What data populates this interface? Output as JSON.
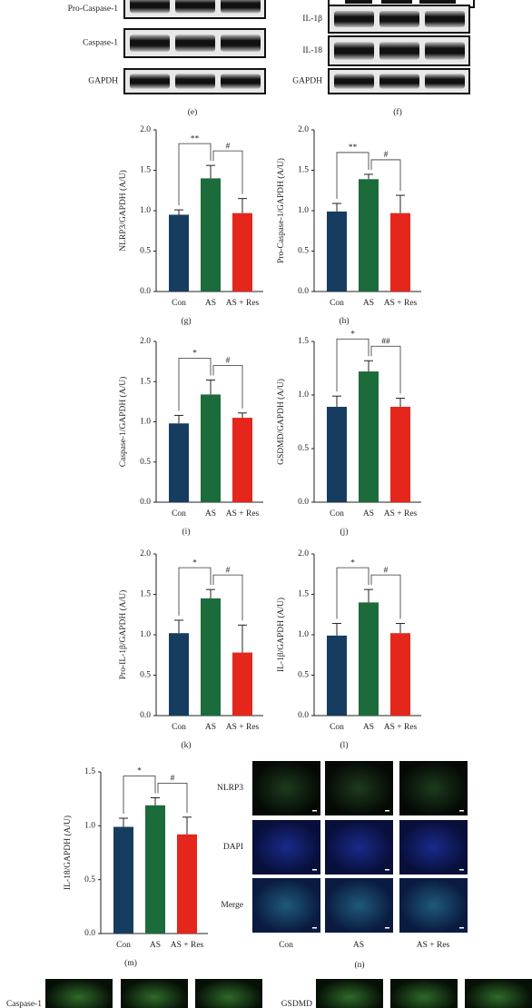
{
  "blots": {
    "e": {
      "rows": [
        "Pro-Caspase-1",
        "Caspase-1",
        "GAPDH"
      ],
      "caption": "(e)"
    },
    "f": {
      "rows": [
        "IL-1β",
        "IL-18",
        "GAPDH"
      ],
      "caption": "(f)"
    }
  },
  "chart_data": [
    {
      "type": "bar",
      "caption": "(g)",
      "ylabel": "NLRP3/GAPDH (A/U)",
      "categories": [
        "Con",
        "AS",
        "AS + Res"
      ],
      "values": [
        0.95,
        1.4,
        0.97
      ],
      "errors": [
        0.06,
        0.16,
        0.18
      ],
      "colors": [
        "#163d5f",
        "#1b6b3b",
        "#e5261c"
      ],
      "ylim": [
        0,
        2
      ],
      "yticks": [
        {
          "value": 0,
          "label": "0.0"
        },
        0.5,
        {
          "value": 1,
          "label": "1.0"
        },
        1.5,
        {
          "value": 2,
          "label": "2.0"
        }
      ],
      "significance": [
        "**",
        "#"
      ]
    },
    {
      "type": "bar",
      "caption": "(h)",
      "ylabel": "Pro-Caspase-1/GAPDH (A/U)",
      "categories": [
        "Con",
        "AS",
        "AS + Res"
      ],
      "values": [
        0.99,
        1.39,
        0.97
      ],
      "errors": [
        0.1,
        0.06,
        0.22
      ],
      "colors": [
        "#163d5f",
        "#1b6b3b",
        "#e5261c"
      ],
      "ylim": [
        0,
        2
      ],
      "yticks": [
        {
          "value": 0,
          "label": "0.0"
        },
        0.5,
        {
          "value": 1,
          "label": "1.0"
        },
        1.5,
        {
          "value": 2,
          "label": "2.0"
        }
      ],
      "significance": [
        "**",
        "#"
      ]
    },
    {
      "type": "bar",
      "caption": "(i)",
      "ylabel": "Caspase-1/GAPDH (A/U)",
      "categories": [
        "Con",
        "AS",
        "AS + Res"
      ],
      "values": [
        0.98,
        1.34,
        1.05
      ],
      "errors": [
        0.1,
        0.18,
        0.06
      ],
      "colors": [
        "#163d5f",
        "#1b6b3b",
        "#e5261c"
      ],
      "ylim": [
        0,
        2
      ],
      "yticks": [
        {
          "value": 0,
          "label": "0.0"
        },
        0.5,
        {
          "value": 1,
          "label": "1.0"
        },
        1.5,
        {
          "value": 2,
          "label": "2.0"
        }
      ],
      "significance": [
        "*",
        "#"
      ]
    },
    {
      "type": "bar",
      "caption": "(j)",
      "ylabel": "GSDMD/GAPDH (A/U)",
      "categories": [
        "Con",
        "AS",
        "AS + Res"
      ],
      "values": [
        0.89,
        1.22,
        0.89
      ],
      "errors": [
        0.1,
        0.1,
        0.08
      ],
      "colors": [
        "#163d5f",
        "#1b6b3b",
        "#e5261c"
      ],
      "ylim": [
        0,
        1.5
      ],
      "yticks": [
        {
          "value": 0,
          "label": "0.0"
        },
        0.5,
        {
          "value": 1,
          "label": "1.0"
        },
        1.5
      ],
      "significance": [
        "*",
        "##"
      ]
    },
    {
      "type": "bar",
      "caption": "(k)",
      "ylabel": "Pro-IL-1β/GAPDH (A/U)",
      "categories": [
        "Con",
        "AS",
        "AS + Res"
      ],
      "values": [
        1.02,
        1.45,
        0.78
      ],
      "errors": [
        0.16,
        0.11,
        0.34
      ],
      "colors": [
        "#163d5f",
        "#1b6b3b",
        "#e5261c"
      ],
      "ylim": [
        0,
        2
      ],
      "yticks": [
        {
          "value": 0,
          "label": "0.0"
        },
        0.5,
        {
          "value": 1,
          "label": "1.0"
        },
        1.5,
        {
          "value": 2,
          "label": "2.0"
        }
      ],
      "significance": [
        "*",
        "#"
      ]
    },
    {
      "type": "bar",
      "caption": "(l)",
      "ylabel": "IL-1β/GAPDH (A/U)",
      "categories": [
        "Con",
        "AS",
        "AS + Res"
      ],
      "values": [
        0.99,
        1.4,
        1.02
      ],
      "errors": [
        0.15,
        0.16,
        0.12
      ],
      "colors": [
        "#163d5f",
        "#1b6b3b",
        "#e5261c"
      ],
      "ylim": [
        0,
        2
      ],
      "yticks": [
        {
          "value": 0,
          "label": "0.0"
        },
        0.5,
        {
          "value": 1,
          "label": "1.0"
        },
        1.5,
        {
          "value": 2,
          "label": "2.0"
        }
      ],
      "significance": [
        "*",
        "#"
      ]
    },
    {
      "type": "bar",
      "caption": "(m)",
      "ylabel": "IL-18/GAPDH (A/U)",
      "categories": [
        "Con",
        "AS",
        "AS + Res"
      ],
      "values": [
        0.99,
        1.19,
        0.92
      ],
      "errors": [
        0.08,
        0.07,
        0.16
      ],
      "colors": [
        "#163d5f",
        "#1b6b3b",
        "#e5261c"
      ],
      "ylim": [
        0,
        1.5
      ],
      "yticks": [
        {
          "value": 0,
          "label": "0.0"
        },
        0.5,
        {
          "value": 1,
          "label": "1.0"
        },
        1.5
      ],
      "significance": [
        "*",
        "#"
      ]
    }
  ],
  "fluorescence": {
    "rows": [
      "NLRP3",
      "DAPI",
      "Merge"
    ],
    "columns": [
      "Con",
      "AS",
      "AS + Res"
    ],
    "caption": "(n)"
  },
  "bottom_row": [
    "Caspase-1",
    "GSDMD"
  ]
}
